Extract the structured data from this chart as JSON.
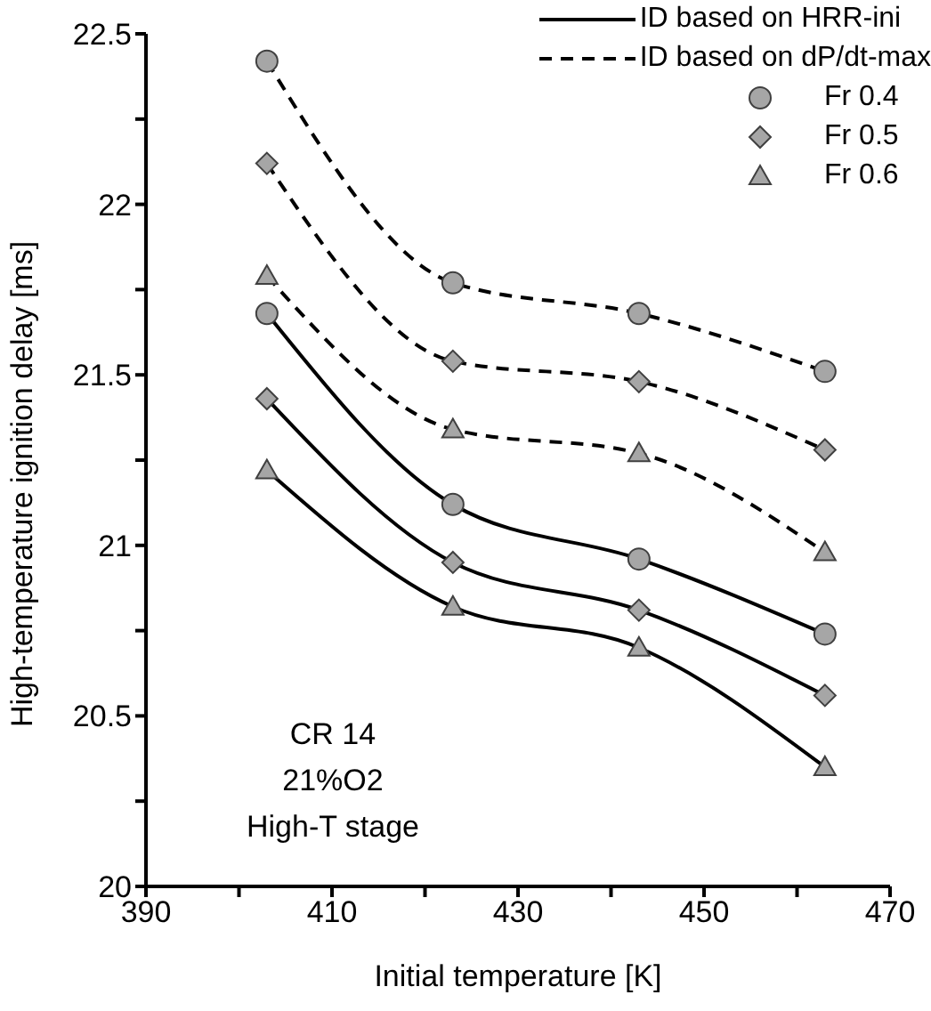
{
  "chart_data": {
    "type": "line",
    "xlabel": "Initial temperature [K]",
    "ylabel": "High-temperature ignition delay [ms]",
    "x": [
      403,
      423,
      443,
      463
    ],
    "xlim": [
      390,
      470
    ],
    "xticks": [
      390,
      {
        "value": 400,
        "label": null
      },
      410,
      {
        "value": 420,
        "label": null
      },
      430,
      {
        "value": 440,
        "label": null
      },
      450,
      {
        "value": 460,
        "label": null
      },
      470
    ],
    "ylim": [
      20,
      22.5
    ],
    "yticks": [
      20,
      {
        "value": 20.25,
        "label": null
      },
      20.5,
      {
        "value": 20.75,
        "label": null
      },
      21,
      {
        "value": 21.25,
        "label": null
      },
      21.5,
      {
        "value": 21.75,
        "label": null
      },
      22,
      {
        "value": 22.25,
        "label": null
      },
      22.5
    ],
    "grid": false,
    "legend": "top right",
    "annotations": [
      "CR 14",
      "21%O2",
      "High-T stage"
    ],
    "series": [
      {
        "color": "#000000",
        "line_style": "dashed",
        "marker": "circle",
        "values": [
          22.42,
          21.77,
          21.68,
          21.51
        ]
      },
      {
        "color": "#000000",
        "line_style": "dashed",
        "marker": "diamond",
        "values": [
          22.12,
          21.54,
          21.48,
          21.28
        ]
      },
      {
        "color": "#000000",
        "line_style": "dashed",
        "marker": "triangle",
        "values": [
          21.79,
          21.34,
          21.27,
          20.98
        ]
      },
      {
        "color": "#000000",
        "line_style": "solid",
        "marker": "circle",
        "values": [
          21.68,
          21.12,
          20.96,
          20.74
        ]
      },
      {
        "color": "#000000",
        "line_style": "solid",
        "marker": "diamond",
        "values": [
          21.43,
          20.95,
          20.81,
          20.56
        ]
      },
      {
        "color": "#000000",
        "line_style": "solid",
        "marker": "triangle",
        "values": [
          21.22,
          20.82,
          20.7,
          20.35
        ]
      },
      {
        "name": "ID based on HRR-ini",
        "color": "#000000",
        "line_style": "solid",
        "marker": "none",
        "values": [
          null,
          null,
          null,
          null
        ]
      },
      {
        "name": "ID based on dP/dt-max",
        "color": "#000000",
        "line_style": "dashed",
        "marker": "none",
        "values": [
          null,
          null,
          null,
          null
        ]
      },
      {
        "name": "Fr 0.4",
        "color": "#a6a6a6",
        "marker": "circle",
        "values": [
          null,
          null,
          null,
          null
        ]
      },
      {
        "name": "Fr 0.5",
        "color": "#a6a6a6",
        "marker": "diamond",
        "values": [
          null,
          null,
          null,
          null
        ]
      },
      {
        "name": "Fr 0.6",
        "color": "#a6a6a6",
        "marker": "triangle",
        "values": [
          null,
          null,
          null,
          null
        ]
      }
    ]
  }
}
